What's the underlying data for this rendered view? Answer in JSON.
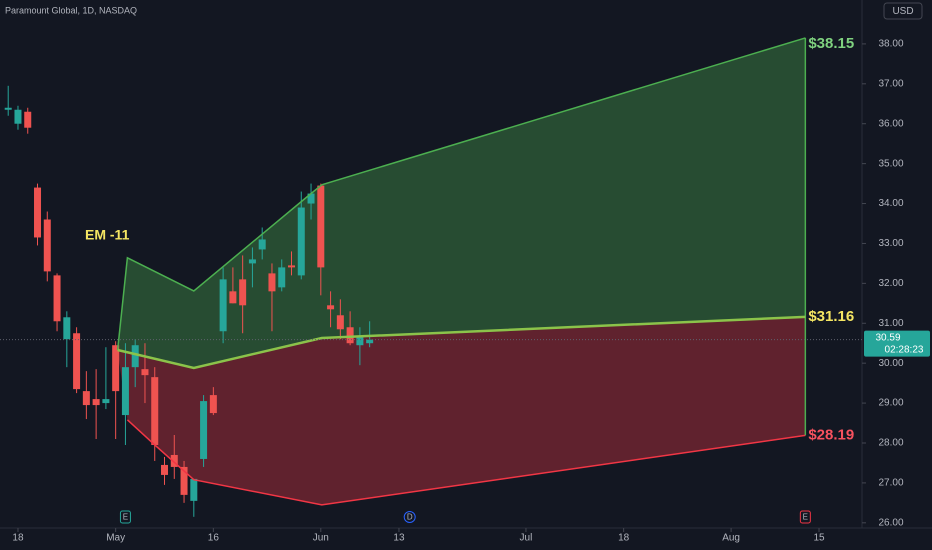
{
  "chart_data": {
    "type": "candlestick",
    "title": "Paramount Global, 1D, NASDAQ",
    "currency": "USD",
    "countdown": "02:28:23",
    "annotation": "EM -11",
    "up_color": "#26a69a",
    "down_color": "#ef5350",
    "grid": false,
    "xlim": [
      -1.84,
      86.4
    ],
    "xticks": [
      {
        "value": 0,
        "label": "18"
      },
      {
        "value": 10,
        "label": "May"
      },
      {
        "value": 20,
        "label": "16"
      },
      {
        "value": 31,
        "label": "Jun"
      },
      {
        "value": 39,
        "label": "13"
      },
      {
        "value": 52,
        "label": "Jul"
      },
      {
        "value": 62,
        "label": "18"
      },
      {
        "value": 73,
        "label": "Aug"
      },
      {
        "value": 82,
        "label": "15"
      }
    ],
    "ylim": [
      25.87,
      39.1
    ],
    "yticks": [
      {
        "value": 26,
        "label": "26.00"
      },
      {
        "value": 27,
        "label": "27.00"
      },
      {
        "value": 28,
        "label": "28.00"
      },
      {
        "value": 29,
        "label": "29.00"
      },
      {
        "value": 30,
        "label": "30.00"
      },
      {
        "value": 31,
        "label": "31.00"
      },
      {
        "value": 32,
        "label": "32.00"
      },
      {
        "value": 33,
        "label": "33.00"
      },
      {
        "value": 34,
        "label": "34.00"
      },
      {
        "value": 35,
        "label": "35.00"
      },
      {
        "value": 36,
        "label": "36.00"
      },
      {
        "value": 37,
        "label": "37.00"
      },
      {
        "value": 38,
        "label": "38.00"
      }
    ],
    "x": [
      -1,
      0,
      1,
      2,
      3,
      4,
      5,
      6,
      7,
      8,
      9,
      10,
      11,
      12,
      13,
      14,
      15,
      16,
      17,
      18,
      19,
      20,
      21,
      22,
      23,
      24,
      25,
      26,
      27,
      28,
      29,
      30,
      31,
      32,
      33,
      34,
      35,
      36
    ],
    "open": [
      36.35,
      36.0,
      36.3,
      34.4,
      33.6,
      32.2,
      30.6,
      30.75,
      29.3,
      29.1,
      29.0,
      30.45,
      28.7,
      29.9,
      29.85,
      29.65,
      27.45,
      27.7,
      27.4,
      26.55,
      27.6,
      29.2,
      30.8,
      31.8,
      32.1,
      32.5,
      32.85,
      32.25,
      31.9,
      32.45,
      32.2,
      34.0,
      34.45,
      31.45,
      31.2,
      30.9,
      30.45,
      30.5
    ],
    "high": [
      36.95,
      36.45,
      36.4,
      34.5,
      33.8,
      32.25,
      31.3,
      30.9,
      29.8,
      29.85,
      30.4,
      30.55,
      30.5,
      30.6,
      30.5,
      29.9,
      27.65,
      28.2,
      27.55,
      27.1,
      29.2,
      29.4,
      32.4,
      32.4,
      32.7,
      32.9,
      33.4,
      32.5,
      32.6,
      32.8,
      34.3,
      34.5,
      34.5,
      31.8,
      31.6,
      31.3,
      30.9,
      31.05
    ],
    "low": [
      36.2,
      35.85,
      35.75,
      32.95,
      32.05,
      30.8,
      29.9,
      29.25,
      28.6,
      28.1,
      28.85,
      28.1,
      27.95,
      29.4,
      29.0,
      27.55,
      26.95,
      27.1,
      26.5,
      26.15,
      27.4,
      28.7,
      30.5,
      31.5,
      30.75,
      31.9,
      32.6,
      30.8,
      31.8,
      32.2,
      32.1,
      33.6,
      31.7,
      30.9,
      30.6,
      30.45,
      29.95,
      30.4
    ],
    "close": [
      36.4,
      36.35,
      35.9,
      33.15,
      32.3,
      31.05,
      31.15,
      29.35,
      28.95,
      28.95,
      29.1,
      29.3,
      29.9,
      30.45,
      29.7,
      27.95,
      27.2,
      27.4,
      26.7,
      27.1,
      29.05,
      28.75,
      32.1,
      31.5,
      31.45,
      32.6,
      33.1,
      31.8,
      32.4,
      32.4,
      33.9,
      34.25,
      32.4,
      31.35,
      30.85,
      30.5,
      30.65,
      30.59
    ],
    "series": [
      {
        "color": "#4caf50",
        "x": [
          10.2,
          11.2,
          18,
          29.6,
          31.1,
          80.6
        ],
        "values": [
          30.33,
          32.64,
          31.81,
          34.17,
          34.47,
          38.15
        ],
        "value_labels": [
          null,
          null,
          null,
          null,
          null,
          "$38.15"
        ],
        "label_color": "#7fd17f"
      },
      {
        "color": "#8bc34a",
        "x": [
          10.2,
          18,
          31.1,
          80.6
        ],
        "values": [
          30.33,
          29.88,
          30.63,
          31.16
        ],
        "value_labels": [
          null,
          null,
          null,
          "$31.16"
        ],
        "label_color": "#f5e663"
      },
      {
        "color": "#f23645",
        "x": [
          11.2,
          14,
          18,
          31.1,
          80.6
        ],
        "values": [
          28.58,
          27.95,
          27.08,
          26.45,
          28.19
        ],
        "value_labels": [
          null,
          null,
          null,
          null,
          "$28.19"
        ],
        "label_color": "#f7525f"
      }
    ],
    "events": [
      {
        "x": 11,
        "label": "E"
      },
      {
        "x": 40.1,
        "label": "D"
      },
      {
        "x": 80.6,
        "label": "E"
      }
    ]
  }
}
